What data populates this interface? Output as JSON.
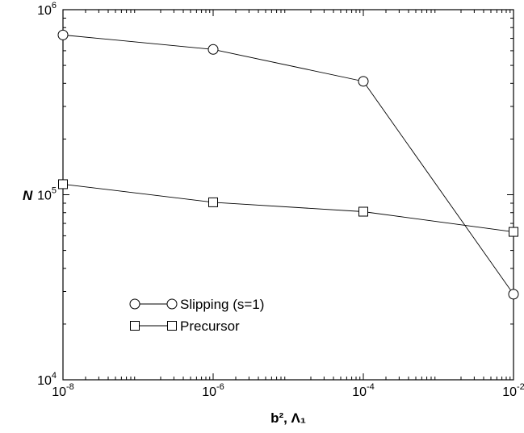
{
  "chart_data": {
    "type": "line",
    "title": "",
    "xlabel": "b², Λ₁",
    "ylabel": "N",
    "xscale": "log",
    "yscale": "log",
    "xlim": [
      1e-08,
      0.01
    ],
    "ylim": [
      10000,
      1000000
    ],
    "x_ticks": [
      {
        "base": "10",
        "exp": "-8"
      },
      {
        "base": "10",
        "exp": "-6"
      },
      {
        "base": "10",
        "exp": "-4"
      },
      {
        "base": "10",
        "exp": "-2"
      }
    ],
    "y_ticks": [
      {
        "base": "10",
        "exp": "4"
      },
      {
        "base": "10",
        "exp": "5"
      },
      {
        "base": "10",
        "exp": "6"
      }
    ],
    "x": [
      1e-08,
      1e-06,
      0.0001,
      0.01
    ],
    "series": [
      {
        "name": "Slipping (s=1)",
        "marker": "circle",
        "values": [
          730000,
          610000,
          410000,
          29000
        ]
      },
      {
        "name": "Precursor",
        "marker": "square",
        "values": [
          114000,
          91000,
          81000,
          63000
        ]
      }
    ],
    "legend_position": "lower-left",
    "grid": false
  }
}
